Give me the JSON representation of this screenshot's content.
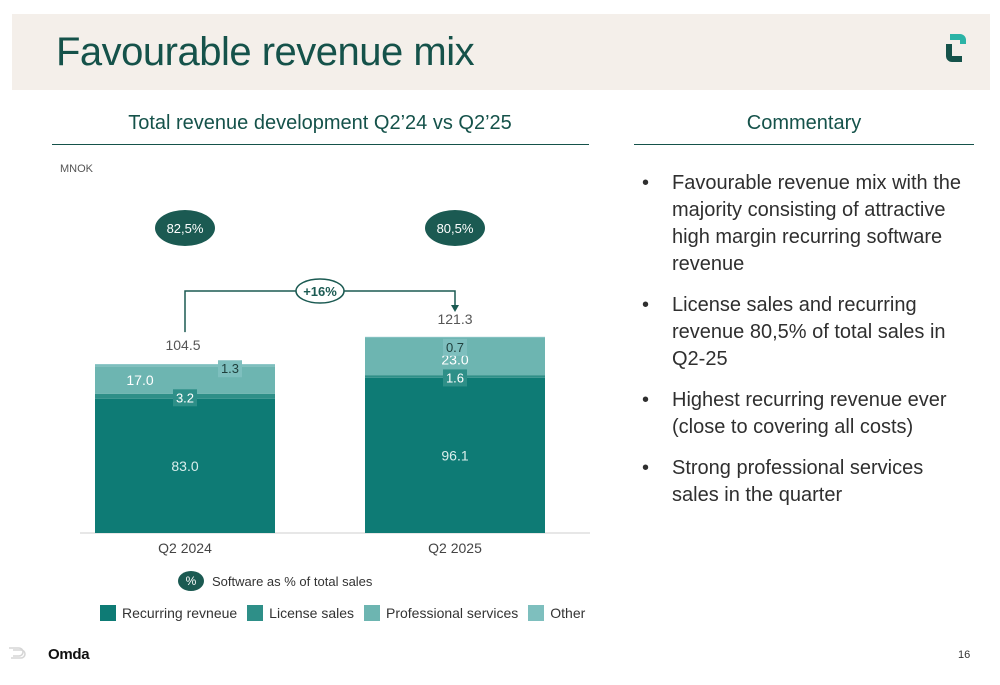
{
  "slide": {
    "title": "Favourable revenue mix",
    "page_number": "16",
    "footer_logo": "Omda"
  },
  "colors": {
    "title": "#15524a",
    "recurring": "#0e7b75",
    "license": "#2e8f88",
    "professional": "#6db5b1",
    "other": "#7ebfbe",
    "badge": "#1b5a52"
  },
  "left_panel": {
    "title": "Total revenue development Q2’24 vs Q2’25",
    "unit": "MNOK",
    "growth_label": "+16%",
    "software_note": "Software as % of total sales",
    "software_badge": "%"
  },
  "right_panel": {
    "title": "Commentary",
    "bullets": [
      "Favourable revenue mix with the majority consisting of attractive high margin recurring software revenue",
      "License sales and recurring revenue 80,5% of total sales in Q2-25",
      "Highest recurring revenue ever (close to covering all costs)",
      "Strong professional services sales in the quarter"
    ]
  },
  "chart_data": {
    "type": "bar",
    "stacked": true,
    "categories": [
      "Q2 2024",
      "Q2 2025"
    ],
    "series": [
      {
        "name": "Recurring revneue",
        "values": [
          83.0,
          96.1
        ],
        "labels": [
          "83.0",
          "96.1"
        ]
      },
      {
        "name": "License sales",
        "values": [
          3.2,
          1.6
        ],
        "labels": [
          "3.2",
          "1.6"
        ]
      },
      {
        "name": "Professional services",
        "values": [
          17.0,
          23.0
        ],
        "labels": [
          "17.0",
          "23.0"
        ]
      },
      {
        "name": "Other",
        "values": [
          1.3,
          0.7
        ],
        "labels": [
          "1.3",
          "0.7"
        ]
      }
    ],
    "totals": [
      104.5,
      121.3
    ],
    "total_labels": [
      "104.5",
      "121.3"
    ],
    "software_share": [
      "82,5%",
      "80,5%"
    ],
    "ylim": [
      0,
      121.3
    ],
    "grid": false,
    "legend_position": "bottom"
  }
}
